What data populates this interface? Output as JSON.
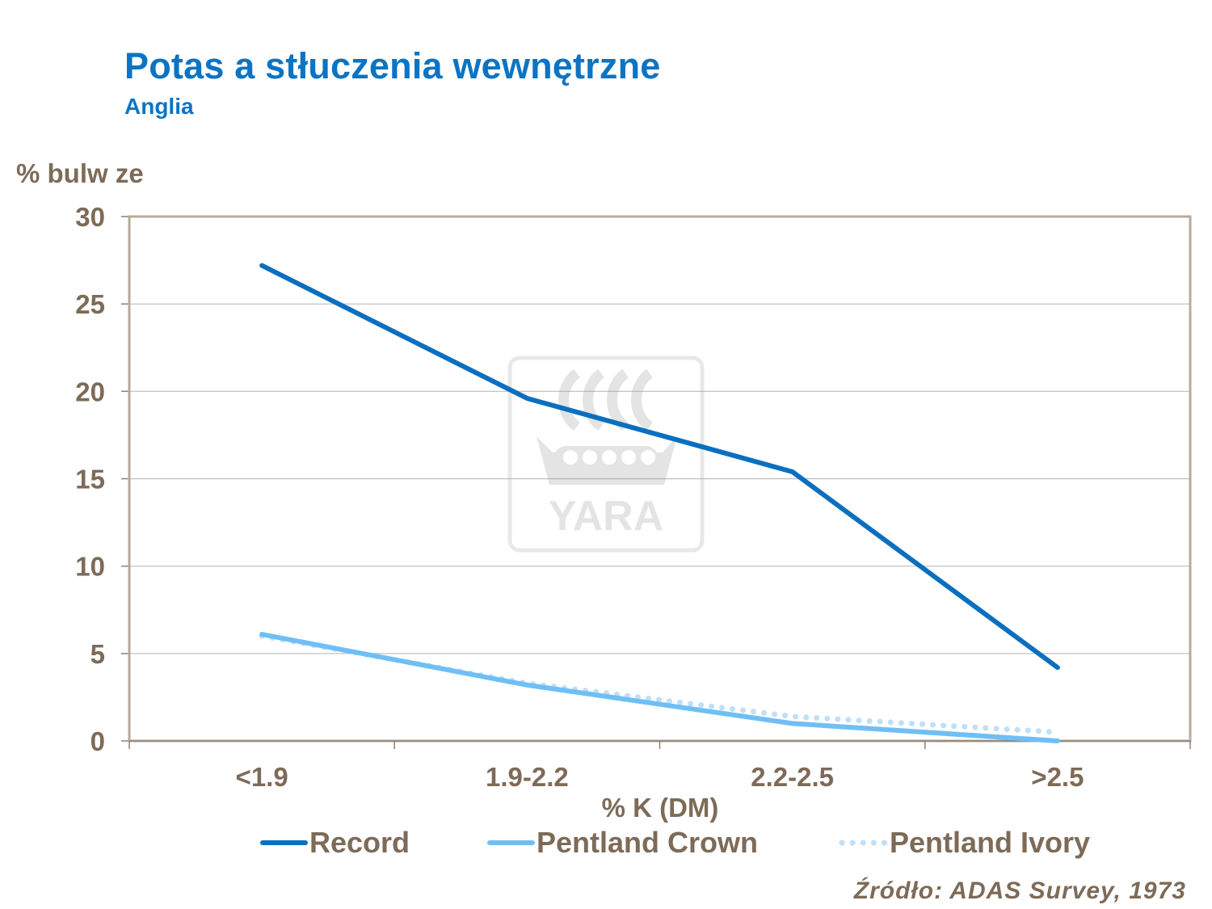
{
  "chart_data": {
    "type": "line",
    "title": "Potas a stłuczenia wewnętrzne",
    "subtitle": "Anglia",
    "ylabel": "% bulw ze",
    "xlabel": "% K (DM)",
    "categories": [
      "<1.9",
      "1.9-2.2",
      "2.2-2.5",
      ">2.5"
    ],
    "ylim": [
      0,
      30
    ],
    "yticks": [
      0,
      5,
      10,
      15,
      20,
      25,
      30
    ],
    "grid": true,
    "legend_position": "bottom",
    "series": [
      {
        "name": "Record",
        "values": [
          27.2,
          19.6,
          15.4,
          4.2
        ],
        "color": "#0b6fc0",
        "style": "solid"
      },
      {
        "name": "Pentland Crown",
        "values": [
          6.1,
          3.2,
          1.0,
          0.0
        ],
        "color": "#6fbff5",
        "style": "solid"
      },
      {
        "name": "Pentland Ivory",
        "values": [
          6.0,
          3.3,
          1.4,
          0.5
        ],
        "color": "#bfe0f6",
        "style": "dotted"
      }
    ]
  },
  "source": "Źródło: ADAS Survey, 1973",
  "watermark": "YARA"
}
